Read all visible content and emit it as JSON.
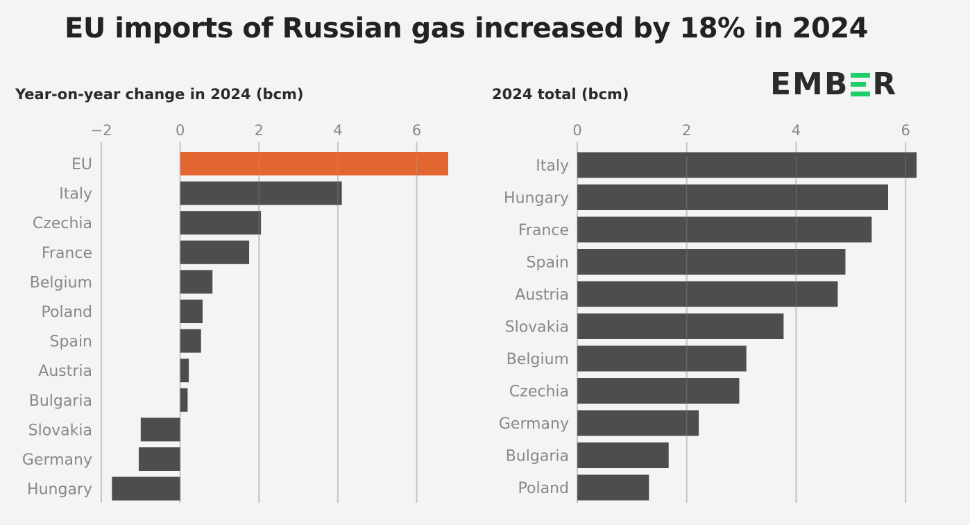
{
  "title": "EU imports of Russian gas increased by 18% in 2024",
  "logo": {
    "prefix": "EMB",
    "suffix": "R",
    "accent_color": "#1ccf6b"
  },
  "colors": {
    "highlight": "#e2662f",
    "bar": "#4d4d4d",
    "grid": "#c4c4c4",
    "tick_text": "#888888",
    "background": "#f4f4f4"
  },
  "chart_data": [
    {
      "type": "bar",
      "orientation": "horizontal",
      "title": "Year-on-year change in 2024 (bcm)",
      "categories": [
        "EU",
        "Italy",
        "Czechia",
        "France",
        "Belgium",
        "Poland",
        "Spain",
        "Austria",
        "Bulgaria",
        "Slovakia",
        "Germany",
        "Hungary"
      ],
      "values": [
        6.8,
        4.1,
        2.05,
        1.75,
        0.82,
        0.57,
        0.53,
        0.22,
        0.19,
        -1.0,
        -1.05,
        -1.73
      ],
      "highlight": "EU",
      "xlim": [
        -2,
        6.8
      ],
      "xticks": [
        -2,
        0,
        2,
        4,
        6
      ],
      "xtick_labels": [
        "−2",
        "0",
        "2",
        "4",
        "6"
      ],
      "grid": true
    },
    {
      "type": "bar",
      "orientation": "horizontal",
      "title": "2024 total (bcm)",
      "categories": [
        "Italy",
        "Hungary",
        "France",
        "Spain",
        "Austria",
        "Slovakia",
        "Belgium",
        "Czechia",
        "Germany",
        "Bulgaria",
        "Poland"
      ],
      "values": [
        6.2,
        5.68,
        5.38,
        4.9,
        4.76,
        3.77,
        3.09,
        2.96,
        2.22,
        1.67,
        1.31
      ],
      "xlim": [
        0,
        6.2
      ],
      "xticks": [
        0,
        2,
        4,
        6
      ],
      "xtick_labels": [
        "0",
        "2",
        "4",
        "6"
      ],
      "grid": true
    }
  ]
}
